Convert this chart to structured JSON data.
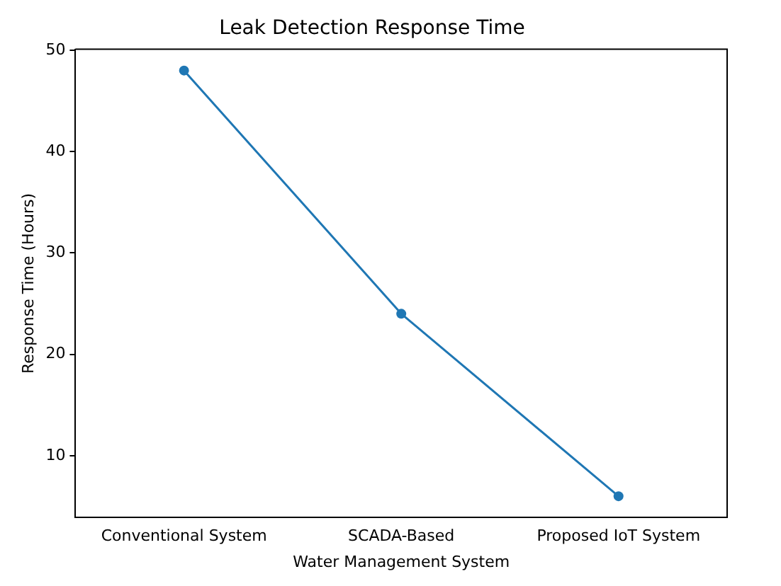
{
  "chart_data": {
    "type": "line",
    "title": "Leak Detection Response Time",
    "xlabel": "Water Management System",
    "ylabel": "Response Time (Hours)",
    "categories": [
      "Conventional System",
      "SCADA-Based",
      "Proposed IoT System"
    ],
    "series": [
      {
        "color": "#1f77b4",
        "values": [
          48,
          24,
          6
        ]
      }
    ],
    "ylim": [
      3.9,
      50.1
    ],
    "yticks": [
      10,
      20,
      30,
      40,
      50
    ],
    "grid": false,
    "legend": false,
    "marker": "circle",
    "line_style": "solid"
  }
}
